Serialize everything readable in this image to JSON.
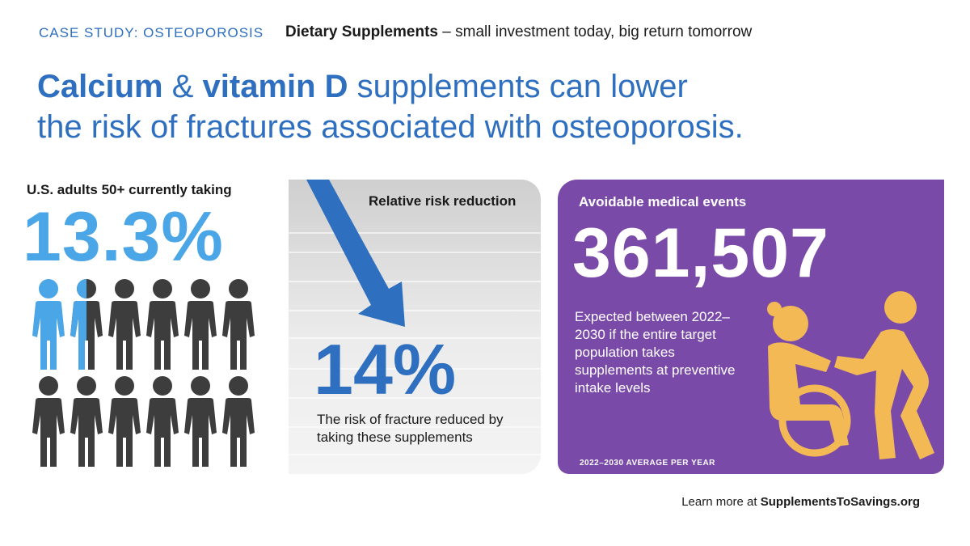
{
  "header": {
    "tag": "CASE STUDY: OSTEOPOROSIS",
    "tagline_bold": "Dietary Supplements",
    "tagline_rest": " – small investment today, big return tomorrow"
  },
  "headline": {
    "part1_bold": "Calcium",
    "part2": " & ",
    "part3_bold": "vitamin D",
    "part4": " supplements can lower",
    "line2": "the risk of fractures associated with osteoporosis."
  },
  "left": {
    "label": "U.S. adults 50+ currently taking",
    "value": "13.3%",
    "fraction_taking": 0.133,
    "colors": {
      "taking": "#4aa6e6",
      "not_taking": "#3d3d3d"
    }
  },
  "middle": {
    "label": "Relative risk reduction",
    "value": "14%",
    "caption": "The risk of fracture reduced by taking these supplements",
    "arrow_color": "#2f6fbf"
  },
  "right": {
    "label": "Avoidable medical events",
    "value": "361,507",
    "caption": "Expected between 2022–2030 if the entire target population takes supplements at preventive intake levels",
    "footnote": "2022–2030 AVERAGE PER YEAR",
    "bg_color": "#7a4aa8",
    "icon_color": "#f3b955",
    "icon": "wheelchair-caregiver-icon"
  },
  "footer": {
    "prefix": "Learn more at ",
    "link": "SupplementsToSavings.org"
  }
}
